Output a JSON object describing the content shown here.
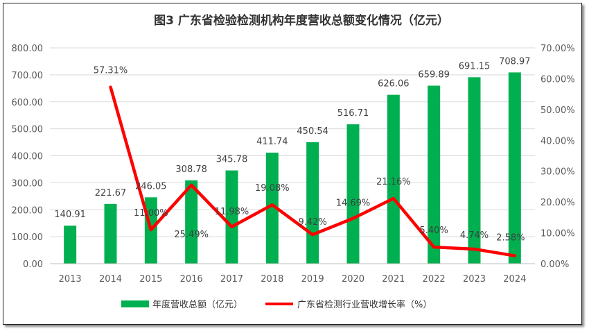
{
  "chart_data": {
    "type": "bar+line",
    "title": "图3  广东省检验检测机构年度营收总额变化情况（亿元）",
    "categories": [
      "2013",
      "2014",
      "2015",
      "2016",
      "2017",
      "2018",
      "2019",
      "2020",
      "2021",
      "2022",
      "2023",
      "2024"
    ],
    "series": [
      {
        "name": "年度营收总额（亿元）",
        "type": "bar",
        "axis": "left",
        "color": "#00B050",
        "values": [
          140.91,
          221.67,
          246.05,
          308.78,
          345.78,
          411.74,
          450.54,
          516.71,
          626.06,
          659.89,
          691.15,
          708.97
        ],
        "labels": [
          "140.91",
          "221.67",
          "246.05",
          "308.78",
          "345.78",
          "411.74",
          "450.54",
          "516.71",
          "626.06",
          "659.89",
          "691.15",
          "708.97"
        ]
      },
      {
        "name": "广东省检测行业营收增长率（%）",
        "type": "line",
        "axis": "right",
        "color": "#FF0000",
        "values": [
          null,
          57.31,
          11.0,
          25.49,
          11.98,
          19.08,
          9.42,
          14.69,
          21.16,
          5.4,
          4.74,
          2.58
        ],
        "labels": [
          "",
          "57.31%",
          "11.00%",
          "25.49%",
          "11.98%",
          "19.08%",
          "9.42%",
          "14.69%",
          "21.16%",
          "5.40%",
          "4.74%",
          "2.58%"
        ]
      }
    ],
    "y_left": {
      "range": [
        0,
        800
      ],
      "ticks": [
        "0.00",
        "100.00",
        "200.00",
        "300.00",
        "400.00",
        "500.00",
        "600.00",
        "700.00",
        "800.00"
      ]
    },
    "y_right": {
      "range": [
        0,
        70
      ],
      "ticks": [
        "0.00%",
        "10.00%",
        "20.00%",
        "30.00%",
        "40.00%",
        "50.00%",
        "60.00%",
        "70.00%"
      ]
    },
    "grid": true,
    "legend_placement": "bottom"
  }
}
